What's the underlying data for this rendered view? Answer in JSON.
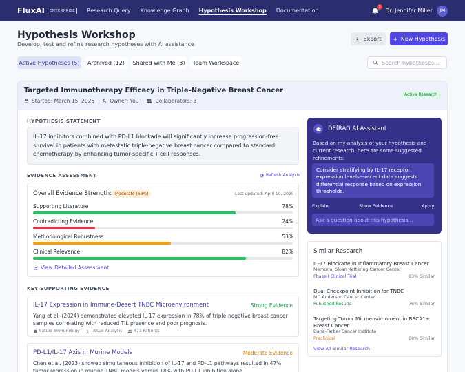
{
  "nav": {
    "brand": "FluxAI",
    "edition": "ENTERPRISE",
    "links": [
      "Research Query",
      "Knowledge Graph",
      "Hypothesis Workshop",
      "Documentation"
    ],
    "notification_count": "3",
    "user_name": "Dr. Jennifer Miller",
    "user_initials": "JM"
  },
  "header": {
    "title": "Hypothesis Workshop",
    "subtitle": "Develop, test and refine research hypotheses with AI assistance",
    "export_label": "Export",
    "new_label": "New Hypothesis"
  },
  "tabs": [
    {
      "label": "Active Hypotheses (5)"
    },
    {
      "label": "Archived (12)"
    },
    {
      "label": "Shared with Me (3)"
    },
    {
      "label": "Team Workspace"
    }
  ],
  "search": {
    "placeholder": "Search hypotheses..."
  },
  "hypothesis": {
    "title": "Targeted Immunotherapy Efficacy in Triple-Negative Breast Cancer",
    "started": "Started: March 15, 2025",
    "owner": "Owner: You",
    "collaborators": "Collaborators: 3",
    "status": "Active Research",
    "statement_label": "HYPOTHESIS STATEMENT",
    "statement": "IL-17 inhibitors combined with PD-L1 blockade will significantly increase progression-free survival in patients with metastatic triple-negative breast cancer compared to standard chemotherapy by enhancing tumor-specific T-cell responses."
  },
  "evidence": {
    "section_label": "EVIDENCE ASSESSMENT",
    "refresh_label": "Refresh Analysis",
    "overall_label": "Overall Evidence Strength:",
    "overall_value": "Moderate (63%)",
    "last_updated": "Last updated: April 19, 2025",
    "metrics": [
      {
        "label": "Supporting Literature",
        "value": "78%",
        "pct": 78,
        "color": "#22c55e"
      },
      {
        "label": "Contradicting Evidence",
        "value": "24%",
        "pct": 24,
        "color": "#dc3545"
      },
      {
        "label": "Methodological Robustness",
        "value": "53%",
        "pct": 53,
        "color": "#f59e0b"
      },
      {
        "label": "Clinical Relevance",
        "value": "82%",
        "pct": 82,
        "color": "#22c55e"
      }
    ],
    "view_detailed": "View Detailed Assessment"
  },
  "supporting": {
    "section_label": "KEY SUPPORTING EVIDENCE",
    "items": [
      {
        "title": "IL-17 Expression in Immune-Desert TNBC Microenvironment",
        "tag": "Strong Evidence",
        "tag_color": "#16a34a",
        "desc": "Yang et al. (2024) demonstrated elevated IL-17 expression in 78% of triple-negative breast cancer samples correlating with reduced TIL presence and poor prognosis.",
        "journal": "Nature Immunology",
        "type": "Tissue Analysis",
        "patients": "473 Patients"
      },
      {
        "title": "PD-L1/IL-17 Axis in Murine Models",
        "tag": "Moderate Evidence",
        "tag_color": "#d97706",
        "desc": "Chen et al. (2023) showed simultaneous inhibition of IL-17 and PD-L1 pathways resulted in 47% tumor regression in murine TNBC models versus 18% with PD-L1 inhibition alone."
      }
    ]
  },
  "assistant": {
    "title": "DEfRAG AI Assistant",
    "intro": "Based on my analysis of your hypothesis and current research, here are some suggested refinements:",
    "suggestion": "Consider stratifying by IL-17 receptor expression levels—recent data suggests differential response based on expression thresholds.",
    "actions": [
      "Explain",
      "Show Evidence",
      "Apply"
    ],
    "input_placeholder": "Ask a question about this hypothesis..."
  },
  "similar": {
    "title": "Similar Research",
    "items": [
      {
        "title": "IL-17 Blockade in Inflammatory Breast Cancer",
        "inst": "Memorial Sloan Kettering Cancer Center",
        "status": "Phase I Clinical Trial",
        "status_color": "#4f46e5",
        "score": "83% Similar"
      },
      {
        "title": "Dual Checkpoint Inhibition for TNBC",
        "inst": "MD Anderson Cancer Center",
        "status": "Published Results",
        "status_color": "#16a34a",
        "score": "76% Similar"
      },
      {
        "title": "Targeting Tumor Microenvironment in BRCA1+ Breast Cancer",
        "inst": "Dana-Farber Cancer Institute",
        "status": "Preclinical",
        "status_color": "#d97706",
        "score": "68% Similar"
      }
    ],
    "view_all": "View All Similar Research"
  }
}
